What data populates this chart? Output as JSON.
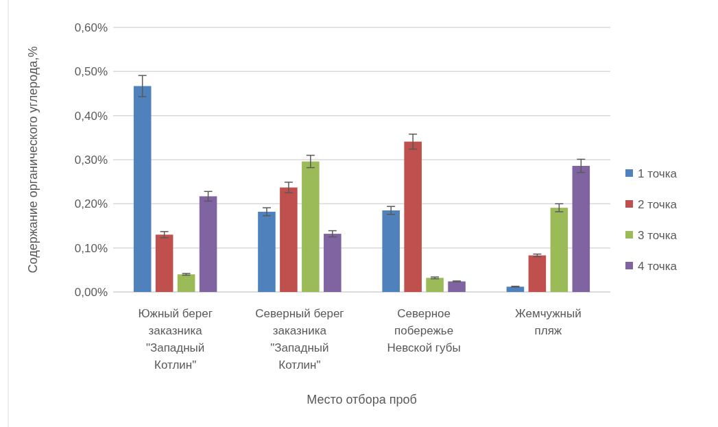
{
  "chart_data": {
    "type": "bar",
    "xlabel": "Место отбора проб",
    "ylabel": "Содержание органического углерода,%",
    "categories": [
      "Южный берег\nзаказника\n\"Западный\nКотлин\"",
      "Северный берег\nзаказника\n\"Западный\nКотлин\"",
      "Северное\nпобережье\nНевской губы",
      "Жемчужный\nпляж"
    ],
    "series": [
      {
        "name": "1 точка",
        "color": "#4f81bd",
        "values": [
          0.467,
          0.182,
          0.185,
          0.012
        ],
        "errors": [
          0.024,
          0.009,
          0.009,
          0.001
        ]
      },
      {
        "name": "2 точка",
        "color": "#c0504d",
        "values": [
          0.13,
          0.237,
          0.341,
          0.083
        ],
        "errors": [
          0.007,
          0.012,
          0.017,
          0.003
        ]
      },
      {
        "name": "3 точка",
        "color": "#9bbb59",
        "values": [
          0.04,
          0.296,
          0.032,
          0.191
        ],
        "errors": [
          0.002,
          0.014,
          0.002,
          0.009
        ]
      },
      {
        "name": "4 точка",
        "color": "#8064a2",
        "values": [
          0.217,
          0.132,
          0.024,
          0.286
        ],
        "errors": [
          0.011,
          0.007,
          0.001,
          0.015
        ]
      }
    ],
    "ylim": [
      0,
      0.6
    ],
    "yticks": [
      {
        "value": 0,
        "label": "0,00%"
      },
      {
        "value": 0.1,
        "label": "0,10%"
      },
      {
        "value": 0.2,
        "label": "0,20%"
      },
      {
        "value": 0.3,
        "label": "0,30%"
      },
      {
        "value": 0.4,
        "label": "0,40%"
      },
      {
        "value": 0.5,
        "label": "0,50%"
      },
      {
        "value": 0.6,
        "label": "0,60%"
      }
    ],
    "grid": "y",
    "legend": "right"
  }
}
